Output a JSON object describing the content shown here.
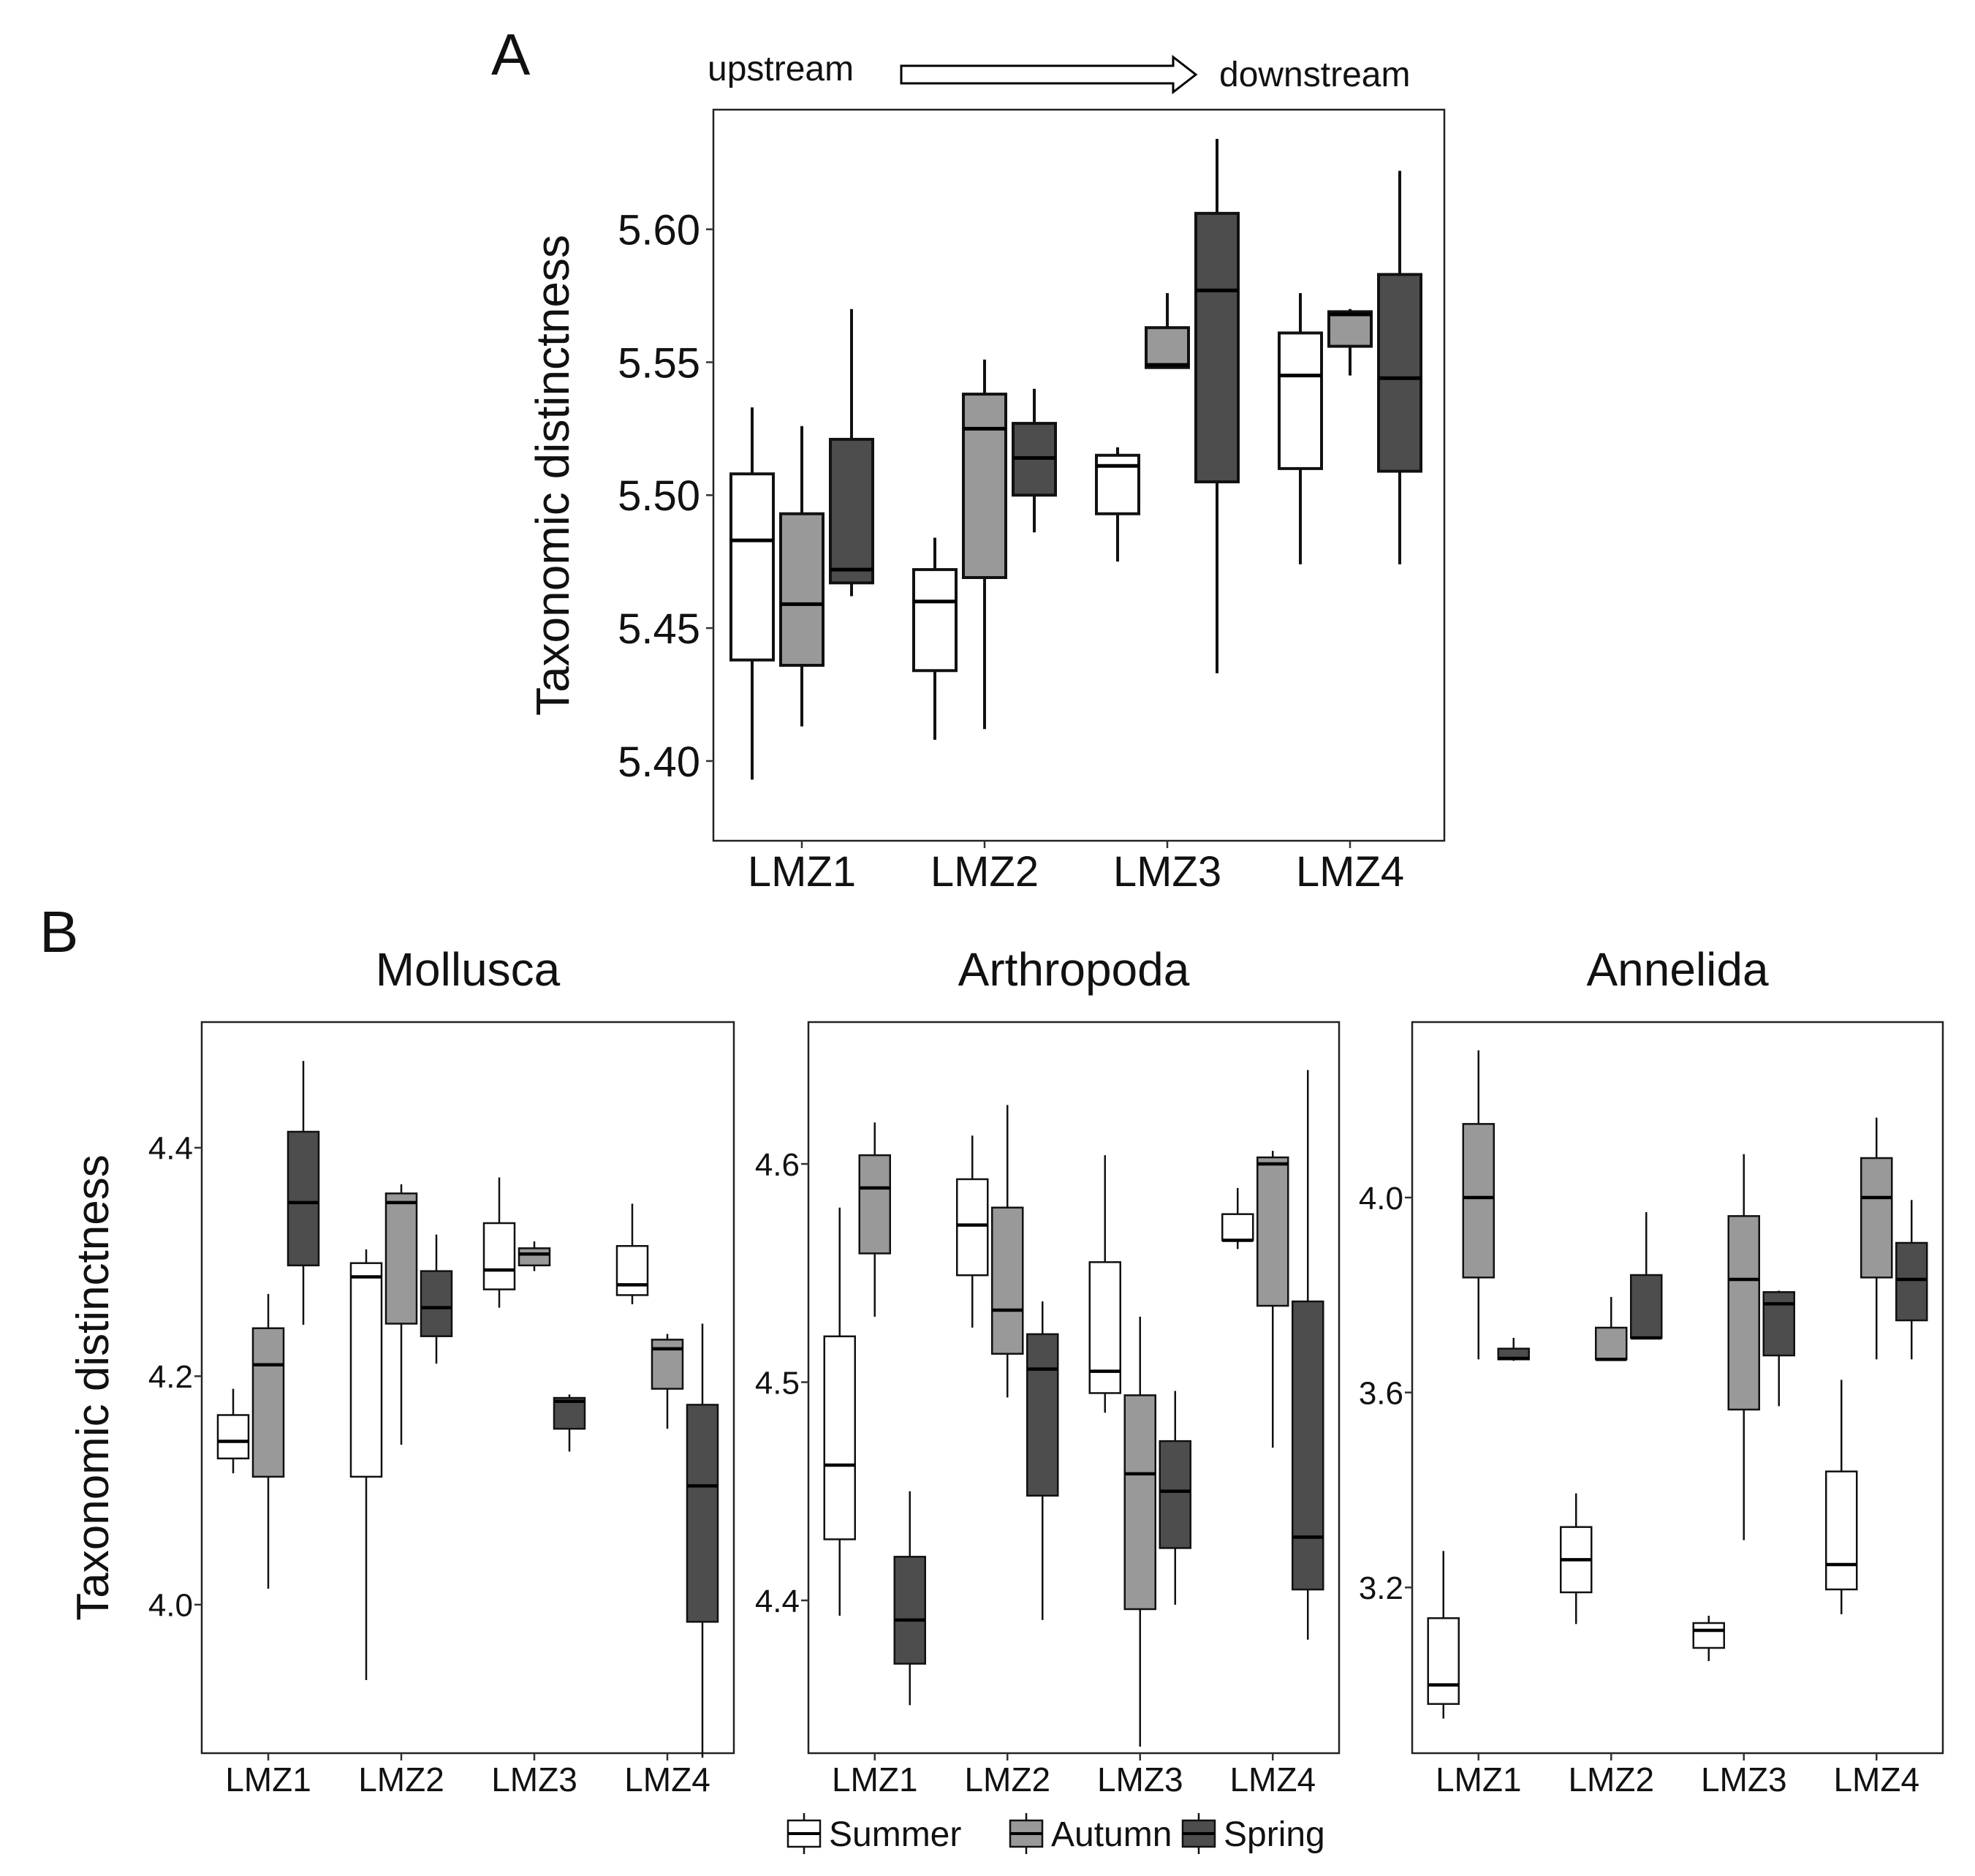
{
  "colors": {
    "Summer": "#ffffff",
    "Autumn": "#999999",
    "Spring": "#4d4d4d",
    "stroke": "#000000"
  },
  "panel_a": {
    "label": "A",
    "flow_left": "upstream",
    "flow_right": "downstream"
  },
  "panel_b": {
    "label": "B"
  },
  "chart_data": [
    {
      "type": "boxplot",
      "id": "A",
      "title": "",
      "xlabel": "",
      "ylabel": "Taxonomic distinctness",
      "ylim": [
        5.37,
        5.645
      ],
      "yticks": [
        "5.40",
        "5.45",
        "5.50",
        "5.55",
        "5.60"
      ],
      "categories": [
        "LMZ1",
        "LMZ2",
        "LMZ3",
        "LMZ4"
      ],
      "series": [
        {
          "name": "Summer",
          "boxes": [
            {
              "min": 5.393,
              "q1": 5.438,
              "median": 5.483,
              "q3": 5.508,
              "max": 5.533
            },
            {
              "min": 5.408,
              "q1": 5.434,
              "median": 5.46,
              "q3": 5.472,
              "max": 5.484
            },
            {
              "min": 5.475,
              "q1": 5.493,
              "median": 5.511,
              "q3": 5.515,
              "max": 5.518
            },
            {
              "min": 5.474,
              "q1": 5.51,
              "median": 5.545,
              "q3": 5.561,
              "max": 5.576
            }
          ]
        },
        {
          "name": "Autumn",
          "boxes": [
            {
              "min": 5.413,
              "q1": 5.436,
              "median": 5.459,
              "q3": 5.493,
              "max": 5.526
            },
            {
              "min": 5.412,
              "q1": 5.469,
              "median": 5.525,
              "q3": 5.538,
              "max": 5.551
            },
            {
              "min": 5.548,
              "q1": 5.548,
              "median": 5.549,
              "q3": 5.563,
              "max": 5.576
            },
            {
              "min": 5.545,
              "q1": 5.556,
              "median": 5.568,
              "q3": 5.569,
              "max": 5.57
            }
          ]
        },
        {
          "name": "Spring",
          "boxes": [
            {
              "min": 5.462,
              "q1": 5.467,
              "median": 5.472,
              "q3": 5.521,
              "max": 5.57
            },
            {
              "min": 5.486,
              "q1": 5.5,
              "median": 5.514,
              "q3": 5.527,
              "max": 5.54
            },
            {
              "min": 5.433,
              "q1": 5.505,
              "median": 5.577,
              "q3": 5.606,
              "max": 5.634
            },
            {
              "min": 5.474,
              "q1": 5.509,
              "median": 5.544,
              "q3": 5.583,
              "max": 5.622
            }
          ]
        }
      ]
    },
    {
      "type": "boxplot",
      "id": "Mollusca",
      "title": "Mollusca",
      "xlabel": "",
      "ylabel": "Taxonomic distinctness",
      "ylim": [
        3.87,
        4.51
      ],
      "yticks": [
        "4.0",
        "4.2",
        "4.4"
      ],
      "categories": [
        "LMZ1",
        "LMZ2",
        "LMZ3",
        "LMZ4"
      ],
      "series": [
        {
          "name": "Summer",
          "boxes": [
            {
              "min": 4.115,
              "q1": 4.128,
              "median": 4.143,
              "q3": 4.166,
              "max": 4.189
            },
            {
              "min": 3.934,
              "q1": 4.112,
              "median": 4.287,
              "q3": 4.299,
              "max": 4.311
            },
            {
              "min": 4.26,
              "q1": 4.276,
              "median": 4.293,
              "q3": 4.334,
              "max": 4.374
            },
            {
              "min": 4.263,
              "q1": 4.271,
              "median": 4.28,
              "q3": 4.314,
              "max": 4.351
            }
          ]
        },
        {
          "name": "Autumn",
          "boxes": [
            {
              "min": 4.014,
              "q1": 4.112,
              "median": 4.21,
              "q3": 4.242,
              "max": 4.272
            },
            {
              "min": 4.14,
              "q1": 4.246,
              "median": 4.352,
              "q3": 4.36,
              "max": 4.368
            },
            {
              "min": 4.292,
              "q1": 4.297,
              "median": 4.307,
              "q3": 4.312,
              "max": 4.318
            },
            {
              "min": 4.154,
              "q1": 4.189,
              "median": 4.224,
              "q3": 4.232,
              "max": 4.237
            }
          ]
        },
        {
          "name": "Spring",
          "boxes": [
            {
              "min": 4.245,
              "q1": 4.297,
              "median": 4.352,
              "q3": 4.414,
              "max": 4.476
            },
            {
              "min": 4.211,
              "q1": 4.235,
              "median": 4.26,
              "q3": 4.292,
              "max": 4.324
            },
            {
              "min": 4.134,
              "q1": 4.154,
              "median": 4.178,
              "q3": 4.181,
              "max": 4.184
            },
            {
              "min": 3.866,
              "q1": 3.985,
              "median": 4.104,
              "q3": 4.175,
              "max": 4.246
            }
          ]
        }
      ]
    },
    {
      "type": "boxplot",
      "id": "Arthropoda",
      "title": "Arthropoda",
      "xlabel": "",
      "ylabel": "",
      "ylim": [
        4.33,
        4.665
      ],
      "yticks": [
        "4.4",
        "4.5",
        "4.6"
      ],
      "categories": [
        "LMZ1",
        "LMZ2",
        "LMZ3",
        "LMZ4"
      ],
      "series": [
        {
          "name": "Summer",
          "boxes": [
            {
              "min": 4.393,
              "q1": 4.428,
              "median": 4.462,
              "q3": 4.521,
              "max": 4.58
            },
            {
              "min": 4.525,
              "q1": 4.549,
              "median": 4.572,
              "q3": 4.593,
              "max": 4.613
            },
            {
              "min": 4.486,
              "q1": 4.495,
              "median": 4.505,
              "q3": 4.555,
              "max": 4.604
            },
            {
              "min": 4.561,
              "q1": 4.565,
              "median": 4.565,
              "q3": 4.577,
              "max": 4.589
            }
          ]
        },
        {
          "name": "Autumn",
          "boxes": [
            {
              "min": 4.53,
              "q1": 4.559,
              "median": 4.589,
              "q3": 4.604,
              "max": 4.619
            },
            {
              "min": 4.493,
              "q1": 4.513,
              "median": 4.533,
              "q3": 4.58,
              "max": 4.627
            },
            {
              "min": 4.333,
              "q1": 4.396,
              "median": 4.458,
              "q3": 4.494,
              "max": 4.53
            },
            {
              "min": 4.47,
              "q1": 4.535,
              "median": 4.6,
              "q3": 4.603,
              "max": 4.606
            }
          ]
        },
        {
          "name": "Spring",
          "boxes": [
            {
              "min": 4.352,
              "q1": 4.371,
              "median": 4.391,
              "q3": 4.42,
              "max": 4.45
            },
            {
              "min": 4.391,
              "q1": 4.448,
              "median": 4.506,
              "q3": 4.522,
              "max": 4.537
            },
            {
              "min": 4.398,
              "q1": 4.424,
              "median": 4.45,
              "q3": 4.473,
              "max": 4.496
            },
            {
              "min": 4.382,
              "q1": 4.405,
              "median": 4.429,
              "q3": 4.537,
              "max": 4.643
            }
          ]
        }
      ]
    },
    {
      "type": "boxplot",
      "id": "Annelida",
      "title": "Annelida",
      "xlabel": "",
      "ylabel": "",
      "ylim": [
        2.86,
        4.36
      ],
      "yticks": [
        "3.2",
        "3.6",
        "4.0"
      ],
      "categories": [
        "LMZ1",
        "LMZ2",
        "LMZ3",
        "LMZ4"
      ],
      "series": [
        {
          "name": "Summer",
          "boxes": [
            {
              "min": 2.931,
              "q1": 2.961,
              "median": 3.0,
              "q3": 3.137,
              "max": 3.275
            },
            {
              "min": 3.125,
              "q1": 3.19,
              "median": 3.257,
              "q3": 3.324,
              "max": 3.393
            },
            {
              "min": 3.049,
              "q1": 3.076,
              "median": 3.112,
              "q3": 3.127,
              "max": 3.142
            },
            {
              "min": 3.145,
              "q1": 3.196,
              "median": 3.247,
              "q3": 3.438,
              "max": 3.626
            }
          ]
        },
        {
          "name": "Autumn",
          "boxes": [
            {
              "min": 3.668,
              "q1": 3.836,
              "median": 4.0,
              "q3": 4.151,
              "max": 4.302
            },
            {
              "min": 3.668,
              "q1": 3.668,
              "median": 3.668,
              "q3": 3.733,
              "max": 3.796
            },
            {
              "min": 3.297,
              "q1": 3.565,
              "median": 3.832,
              "q3": 3.962,
              "max": 4.089
            },
            {
              "min": 3.668,
              "q1": 3.836,
              "median": 4.0,
              "q3": 4.081,
              "max": 4.164
            }
          ]
        },
        {
          "name": "Spring",
          "boxes": [
            {
              "min": 3.665,
              "q1": 3.668,
              "median": 3.67,
              "q3": 3.69,
              "max": 3.712
            },
            {
              "min": 3.712,
              "q1": 3.712,
              "median": 3.712,
              "q3": 3.841,
              "max": 3.97
            },
            {
              "min": 3.572,
              "q1": 3.676,
              "median": 3.782,
              "q3": 3.806,
              "max": 3.809
            },
            {
              "min": 3.668,
              "q1": 3.748,
              "median": 3.832,
              "q3": 3.907,
              "max": 3.995
            }
          ]
        }
      ]
    }
  ],
  "legend": {
    "items": [
      {
        "name": "Summer",
        "color": "#ffffff"
      },
      {
        "name": "Autumn",
        "color": "#999999"
      },
      {
        "name": "Spring",
        "color": "#4d4d4d"
      }
    ]
  }
}
